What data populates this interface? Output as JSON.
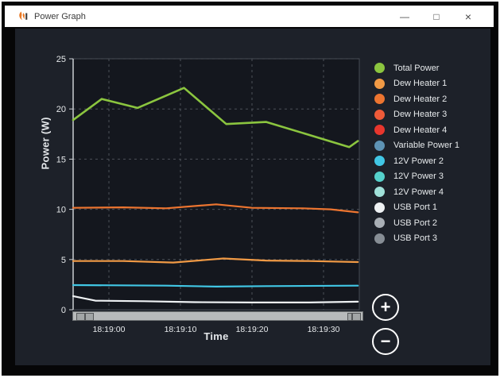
{
  "window": {
    "title": "Power Graph",
    "controls": {
      "minimize": "—",
      "maximize": "□",
      "close": "×"
    }
  },
  "icons": {
    "app_logo": "flame-logo",
    "minimize": "minimize-icon",
    "maximize": "maximize-icon",
    "close": "close-icon",
    "zoom_in": "plus-icon",
    "zoom_out": "minus-icon"
  },
  "colors": {
    "titlebar_bg": "#ffffff",
    "frame": "#060607",
    "content_bg": "#1d2129",
    "plot_bg": "#14171e",
    "grid": "#4b5058",
    "axis": "#c9cdd1",
    "text": "#e7eaec"
  },
  "zoom_controls": {
    "zoom_in": "+",
    "zoom_out": "−"
  },
  "chart_data": {
    "type": "line",
    "xlabel": "Time",
    "ylabel": "Power (W)",
    "ylim": [
      0,
      25
    ],
    "y_ticks": [
      0,
      5,
      10,
      15,
      20,
      25
    ],
    "x_domain_seconds_rel_18_19_00": [
      -5,
      35
    ],
    "x_ticks": [
      {
        "t": 0,
        "label": "18:19:00"
      },
      {
        "t": 10,
        "label": "18:19:10"
      },
      {
        "t": 20,
        "label": "18:19:20"
      },
      {
        "t": 30,
        "label": "18:19:30"
      }
    ],
    "grid": true,
    "legend_position": "right",
    "series": [
      {
        "name": "Total Power",
        "color": "#8BC53F",
        "width": 2.6,
        "points": [
          [
            -5,
            18.9
          ],
          [
            -1,
            21.0
          ],
          [
            4,
            20.1
          ],
          [
            10.5,
            22.1
          ],
          [
            16.4,
            18.5
          ],
          [
            22,
            18.7
          ],
          [
            33.6,
            16.2
          ],
          [
            34.8,
            16.8
          ]
        ]
      },
      {
        "name": "Dew Heater 1",
        "color": "#F19A45",
        "width": 2.2,
        "points": [
          [
            -5,
            4.85
          ],
          [
            2,
            4.85
          ],
          [
            9,
            4.7
          ],
          [
            16,
            5.1
          ],
          [
            22,
            4.9
          ],
          [
            28,
            4.85
          ],
          [
            34.8,
            4.75
          ]
        ]
      },
      {
        "name": "Dew Heater 2",
        "color": "#ED7530",
        "width": 2.2,
        "points": [
          [
            -5,
            10.15
          ],
          [
            2,
            10.2
          ],
          [
            8,
            10.1
          ],
          [
            15,
            10.5
          ],
          [
            20,
            10.15
          ],
          [
            27,
            10.1
          ],
          [
            31,
            10.0
          ],
          [
            34.8,
            9.7
          ]
        ]
      },
      {
        "name": "Dew Heater 3",
        "color": "#EF5B39",
        "width": 2.2,
        "points": []
      },
      {
        "name": "Dew Heater 4",
        "color": "#E8362D",
        "width": 2.2,
        "points": []
      },
      {
        "name": "Variable Power 1",
        "color": "#5E93B5",
        "width": 2.2,
        "points": []
      },
      {
        "name": "12V Power 2",
        "color": "#41C7E5",
        "width": 2.2,
        "points": [
          [
            -5,
            2.45
          ],
          [
            8,
            2.4
          ],
          [
            15,
            2.3
          ],
          [
            22,
            2.35
          ],
          [
            34.8,
            2.4
          ]
        ]
      },
      {
        "name": "12V Power 3",
        "color": "#55D1CB",
        "width": 2.2,
        "points": []
      },
      {
        "name": "12V Power 4",
        "color": "#A0E1D9",
        "width": 2.2,
        "points": []
      },
      {
        "name": "USB Port 1",
        "color": "#EEF1F3",
        "width": 2.2,
        "points": [
          [
            -5,
            1.35
          ],
          [
            -1.9,
            0.9
          ],
          [
            5,
            0.85
          ],
          [
            12,
            0.75
          ],
          [
            20,
            0.72
          ],
          [
            28,
            0.72
          ],
          [
            34.8,
            0.8
          ]
        ]
      },
      {
        "name": "USB Port 2",
        "color": "#A9AFB5",
        "width": 2.2,
        "points": []
      },
      {
        "name": "USB Port 3",
        "color": "#878E95",
        "width": 2.2,
        "points": []
      }
    ]
  }
}
